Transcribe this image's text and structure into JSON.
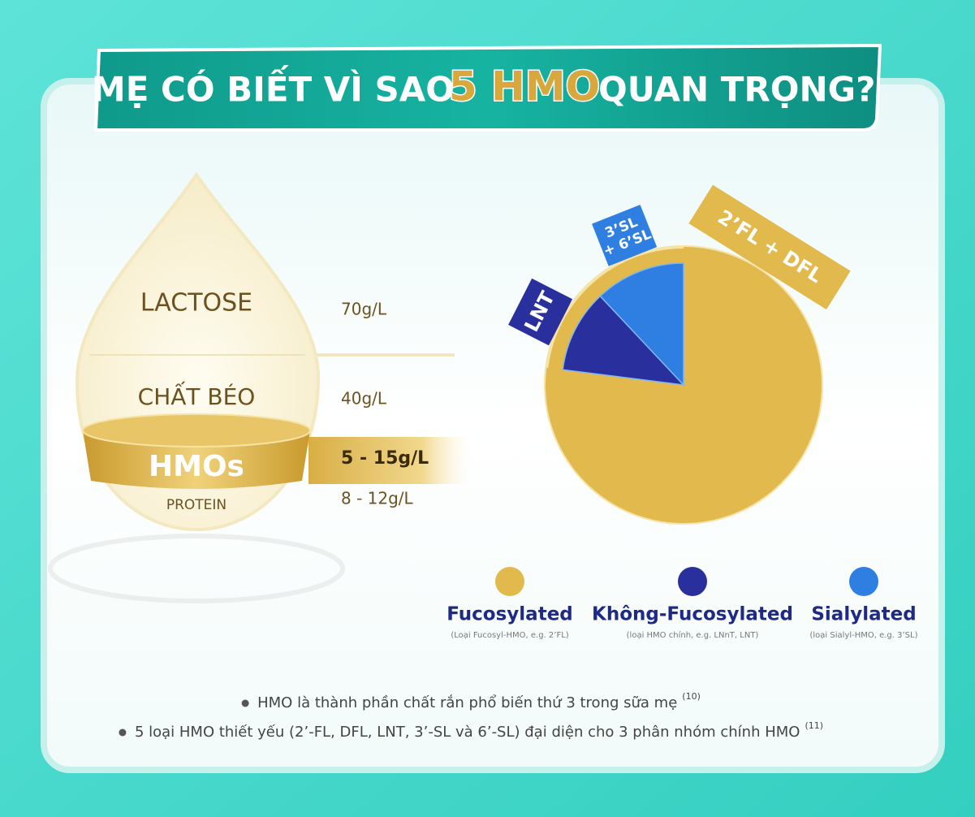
{
  "header": {
    "title_before": "MẸ CÓ BIẾT VÌ SAO",
    "title_brand": "5 HMO",
    "title_after": "QUAN TRỌNG?"
  },
  "composition": {
    "rows": [
      {
        "label": "LACTOSE",
        "value": "70g/L"
      },
      {
        "label": "CHẤT BÉO",
        "value": "40g/L"
      },
      {
        "label": "HMOs",
        "value": "5 - 15g/L"
      },
      {
        "label": "PROTEIN",
        "value": "8 - 12g/L"
      }
    ]
  },
  "pie": {
    "slices": [
      {
        "label_lines": [
          "2’FL + DFL"
        ],
        "value": 77,
        "color": "#e2b94c"
      },
      {
        "label_lines": [
          "LNT"
        ],
        "value": 11,
        "color": "#2a2f9e"
      },
      {
        "label_lines": [
          "3’SL",
          "+ 6’SL"
        ],
        "value": 12,
        "color": "#2f7fe2"
      }
    ]
  },
  "legend": [
    {
      "name": "Fucosylated",
      "note": "(Loại Fucosyl-HMO, e.g. 2’FL)",
      "color": "#e2b94c"
    },
    {
      "name": "Không-Fucosylated",
      "note": "(loại HMO chính, e.g. LNnT, LNT)",
      "color": "#2a2f9e"
    },
    {
      "name": "Sialylated",
      "note": "(loại Sialyl-HMO, e.g. 3’SL)",
      "color": "#2f7fe2"
    }
  ],
  "notes": [
    {
      "text": "HMO là thành phần chất rắn phổ biến thứ 3 trong sữa mẹ",
      "ref": "(10)"
    },
    {
      "text": "5 loại HMO thiết yếu (2’-FL, DFL, LNT, 3’-SL và 6’-SL) đại diện cho 3 phân nhóm chính HMO",
      "ref": "(11)"
    }
  ]
}
